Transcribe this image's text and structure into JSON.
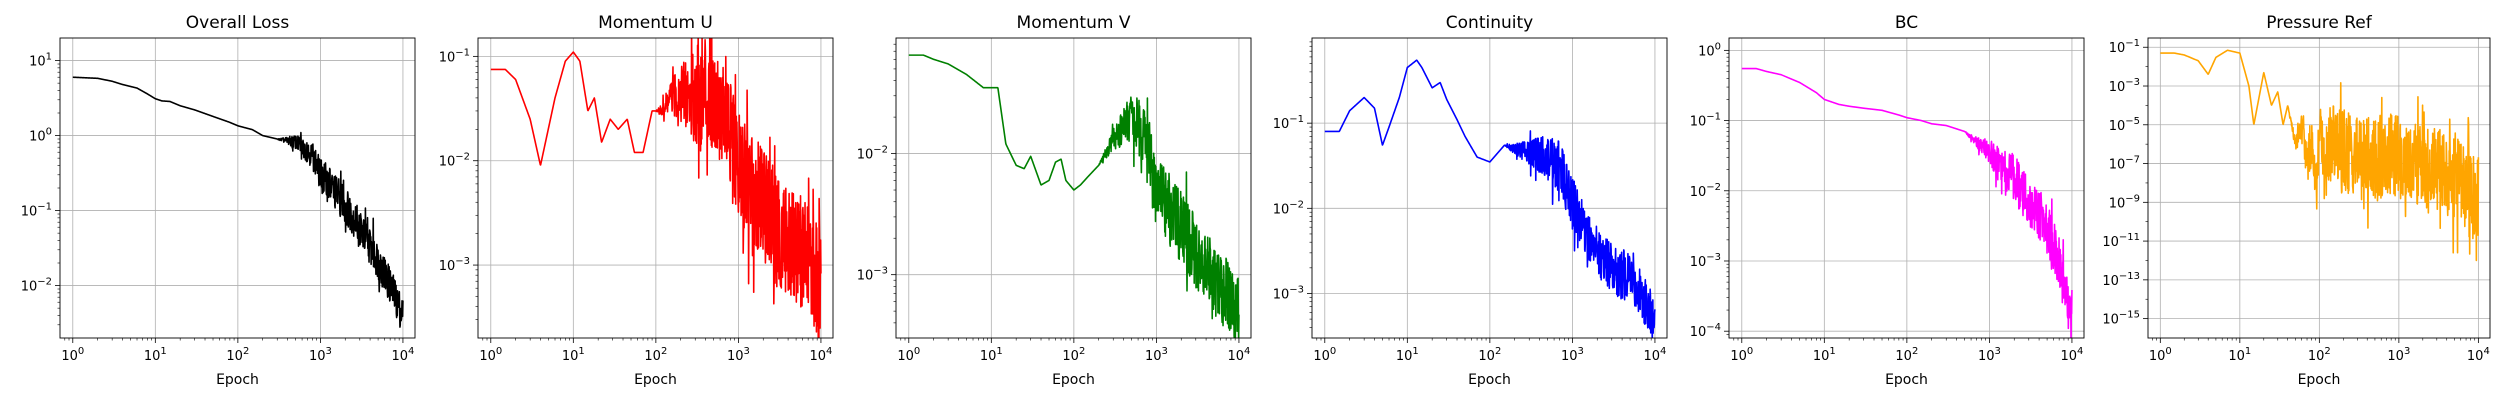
{
  "chart_data": [
    {
      "type": "line",
      "title": "Overall Loss",
      "xlabel": "Epoch",
      "ylabel": "",
      "x_scale": "log",
      "y_scale": "log",
      "xlim": [
        0.7,
        14000
      ],
      "ylim": [
        0.002,
        20
      ],
      "x_ticks": [
        "10^0",
        "10^1",
        "10^2",
        "10^3",
        "10^4"
      ],
      "y_ticks": [
        "10^-2",
        "10^-1",
        "10^0",
        "10^1"
      ],
      "grid": true,
      "color": "#000000",
      "series": [
        {
          "x": [
            1,
            2,
            3,
            4,
            6,
            8,
            10,
            12,
            15,
            20,
            30,
            50,
            80,
            100,
            150,
            200,
            300,
            500,
            800,
            1000,
            1500,
            2000,
            3000,
            5000,
            7000,
            10000
          ],
          "y": [
            6.0,
            5.8,
            5.3,
            4.8,
            4.3,
            3.6,
            3.1,
            2.9,
            2.85,
            2.5,
            2.2,
            1.8,
            1.5,
            1.35,
            1.2,
            1.0,
            0.9,
            0.82,
            0.55,
            0.3,
            0.18,
            0.12,
            0.06,
            0.022,
            0.01,
            0.004
          ],
          "noise_from_x": 300,
          "noise_decades": 0.25
        }
      ]
    },
    {
      "type": "line",
      "title": "Momentum U",
      "xlabel": "Epoch",
      "ylabel": "",
      "x_scale": "log",
      "y_scale": "log",
      "xlim": [
        0.7,
        14000
      ],
      "ylim": [
        0.0002,
        0.15
      ],
      "x_ticks": [
        "10^0",
        "10^1",
        "10^2",
        "10^3",
        "10^4"
      ],
      "y_ticks": [
        "10^-3",
        "10^-2",
        "10^-1"
      ],
      "grid": true,
      "color": "#ff0000",
      "series": [
        {
          "x": [
            1,
            1.5,
            2,
            3,
            4,
            6,
            8,
            10,
            12,
            15,
            18,
            22,
            28,
            35,
            45,
            55,
            70,
            90,
            120,
            150,
            200,
            300,
            400,
            500,
            700,
            1000,
            2000,
            3000,
            5000,
            7000,
            10000
          ],
          "y": [
            0.075,
            0.075,
            0.06,
            0.025,
            0.009,
            0.04,
            0.09,
            0.11,
            0.09,
            0.03,
            0.04,
            0.015,
            0.025,
            0.02,
            0.025,
            0.012,
            0.012,
            0.03,
            0.03,
            0.04,
            0.045,
            0.04,
            0.05,
            0.045,
            0.025,
            0.008,
            0.004,
            0.002,
            0.0015,
            0.0012,
            0.0006
          ],
          "noise_from_x": 100,
          "noise_decades": 0.55
        }
      ]
    },
    {
      "type": "line",
      "title": "Momentum V",
      "xlabel": "Epoch",
      "ylabel": "",
      "x_scale": "log",
      "y_scale": "log",
      "xlim": [
        0.7,
        14000
      ],
      "ylim": [
        0.0003,
        0.09
      ],
      "x_ticks": [
        "10^0",
        "10^1",
        "10^2",
        "10^3",
        "10^4"
      ],
      "y_ticks": [
        "10^-3",
        "10^-2"
      ],
      "grid": true,
      "color": "#008000",
      "series": [
        {
          "x": [
            1,
            1.5,
            2,
            3,
            5,
            8,
            12,
            15,
            20,
            25,
            30,
            40,
            50,
            60,
            70,
            80,
            100,
            120,
            150,
            200,
            300,
            500,
            700,
            1000,
            2000,
            3000,
            5000,
            7000,
            10000
          ],
          "y": [
            0.065,
            0.065,
            0.06,
            0.055,
            0.045,
            0.035,
            0.035,
            0.012,
            0.008,
            0.0075,
            0.0095,
            0.0055,
            0.006,
            0.0085,
            0.009,
            0.006,
            0.005,
            0.0055,
            0.0065,
            0.008,
            0.013,
            0.02,
            0.015,
            0.005,
            0.0025,
            0.0015,
            0.0009,
            0.0007,
            0.0005
          ],
          "noise_from_x": 200,
          "noise_decades": 0.3
        }
      ]
    },
    {
      "type": "line",
      "title": "Continuity",
      "xlabel": "Epoch",
      "ylabel": "",
      "x_scale": "log",
      "y_scale": "log",
      "xlim": [
        0.7,
        14000
      ],
      "ylim": [
        0.0003,
        1.0
      ],
      "x_ticks": [
        "10^0",
        "10^1",
        "10^2",
        "10^3",
        "10^4"
      ],
      "y_ticks": [
        "10^-3",
        "10^-2",
        "10^-1"
      ],
      "grid": true,
      "color": "#0000ff",
      "series": [
        {
          "x": [
            1,
            1.5,
            2,
            3,
            4,
            5,
            6,
            8,
            10,
            13,
            15,
            20,
            25,
            30,
            40,
            50,
            70,
            100,
            150,
            200,
            300,
            500,
            700,
            1000,
            1500,
            2000,
            3000,
            5000,
            7000,
            10000
          ],
          "y": [
            0.08,
            0.08,
            0.14,
            0.2,
            0.15,
            0.055,
            0.09,
            0.2,
            0.45,
            0.55,
            0.45,
            0.26,
            0.3,
            0.19,
            0.11,
            0.07,
            0.04,
            0.035,
            0.055,
            0.05,
            0.045,
            0.04,
            0.03,
            0.012,
            0.005,
            0.003,
            0.002,
            0.0015,
            0.001,
            0.00045
          ],
          "noise_from_x": 150,
          "noise_decades": 0.3
        }
      ]
    },
    {
      "type": "line",
      "title": "BC",
      "xlabel": "Epoch",
      "ylabel": "",
      "x_scale": "log",
      "y_scale": "log",
      "xlim": [
        0.7,
        14000
      ],
      "ylim": [
        8e-05,
        1.5
      ],
      "x_ticks": [
        "10^0",
        "10^1",
        "10^2",
        "10^3",
        "10^4"
      ],
      "y_ticks": [
        "10^-4",
        "10^-3",
        "10^-2",
        "10^-1",
        "10^0"
      ],
      "grid": true,
      "color": "#ff00ff",
      "series": [
        {
          "x": [
            1,
            1.5,
            2,
            3,
            5,
            8,
            10,
            15,
            20,
            30,
            50,
            80,
            100,
            150,
            200,
            300,
            500,
            700,
            1000,
            2000,
            3000,
            5000,
            7000,
            10000
          ],
          "y": [
            0.55,
            0.55,
            0.5,
            0.45,
            0.35,
            0.25,
            0.2,
            0.17,
            0.16,
            0.15,
            0.14,
            0.12,
            0.11,
            0.1,
            0.09,
            0.085,
            0.07,
            0.05,
            0.035,
            0.015,
            0.007,
            0.003,
            0.001,
            0.00012
          ],
          "noise_from_x": 500,
          "noise_decades": 0.35
        }
      ]
    },
    {
      "type": "line",
      "title": "Pressure Ref",
      "xlabel": "Epoch",
      "ylabel": "",
      "x_scale": "log",
      "y_scale": "log",
      "xlim": [
        0.7,
        14000
      ],
      "ylim": [
        1e-16,
        0.3
      ],
      "x_ticks": [
        "10^0",
        "10^1",
        "10^2",
        "10^3",
        "10^4"
      ],
      "y_ticks": [
        "10^-15",
        "10^-13",
        "10^-11",
        "10^-9",
        "10^-7",
        "10^-5",
        "10^-3",
        "10^-1"
      ],
      "grid": true,
      "color": "#ffa500",
      "series": [
        {
          "x": [
            1,
            1.5,
            2,
            3,
            4,
            5,
            7,
            10,
            13,
            15,
            20,
            25,
            30,
            35,
            40,
            50,
            60,
            70,
            80,
            90,
            100,
            150,
            200,
            300,
            500,
            700,
            1000,
            2000,
            3000,
            5000,
            7000,
            10000
          ],
          "y": [
            0.05,
            0.05,
            0.04,
            0.02,
            0.004,
            0.03,
            0.07,
            0.05,
            0.001,
            1e-05,
            0.005,
            0.0001,
            0.0005,
            1e-05,
            0.0001,
            1e-06,
            1e-05,
            1e-07,
            1e-06,
            1e-08,
            1e-06,
            1e-06,
            5e-07,
            2e-07,
            1e-07,
            5e-07,
            2e-07,
            1e-07,
            5e-08,
            2e-08,
            5e-09,
            1e-09
          ],
          "noise_from_x": 40,
          "noise_decades": 2.2
        }
      ]
    }
  ]
}
